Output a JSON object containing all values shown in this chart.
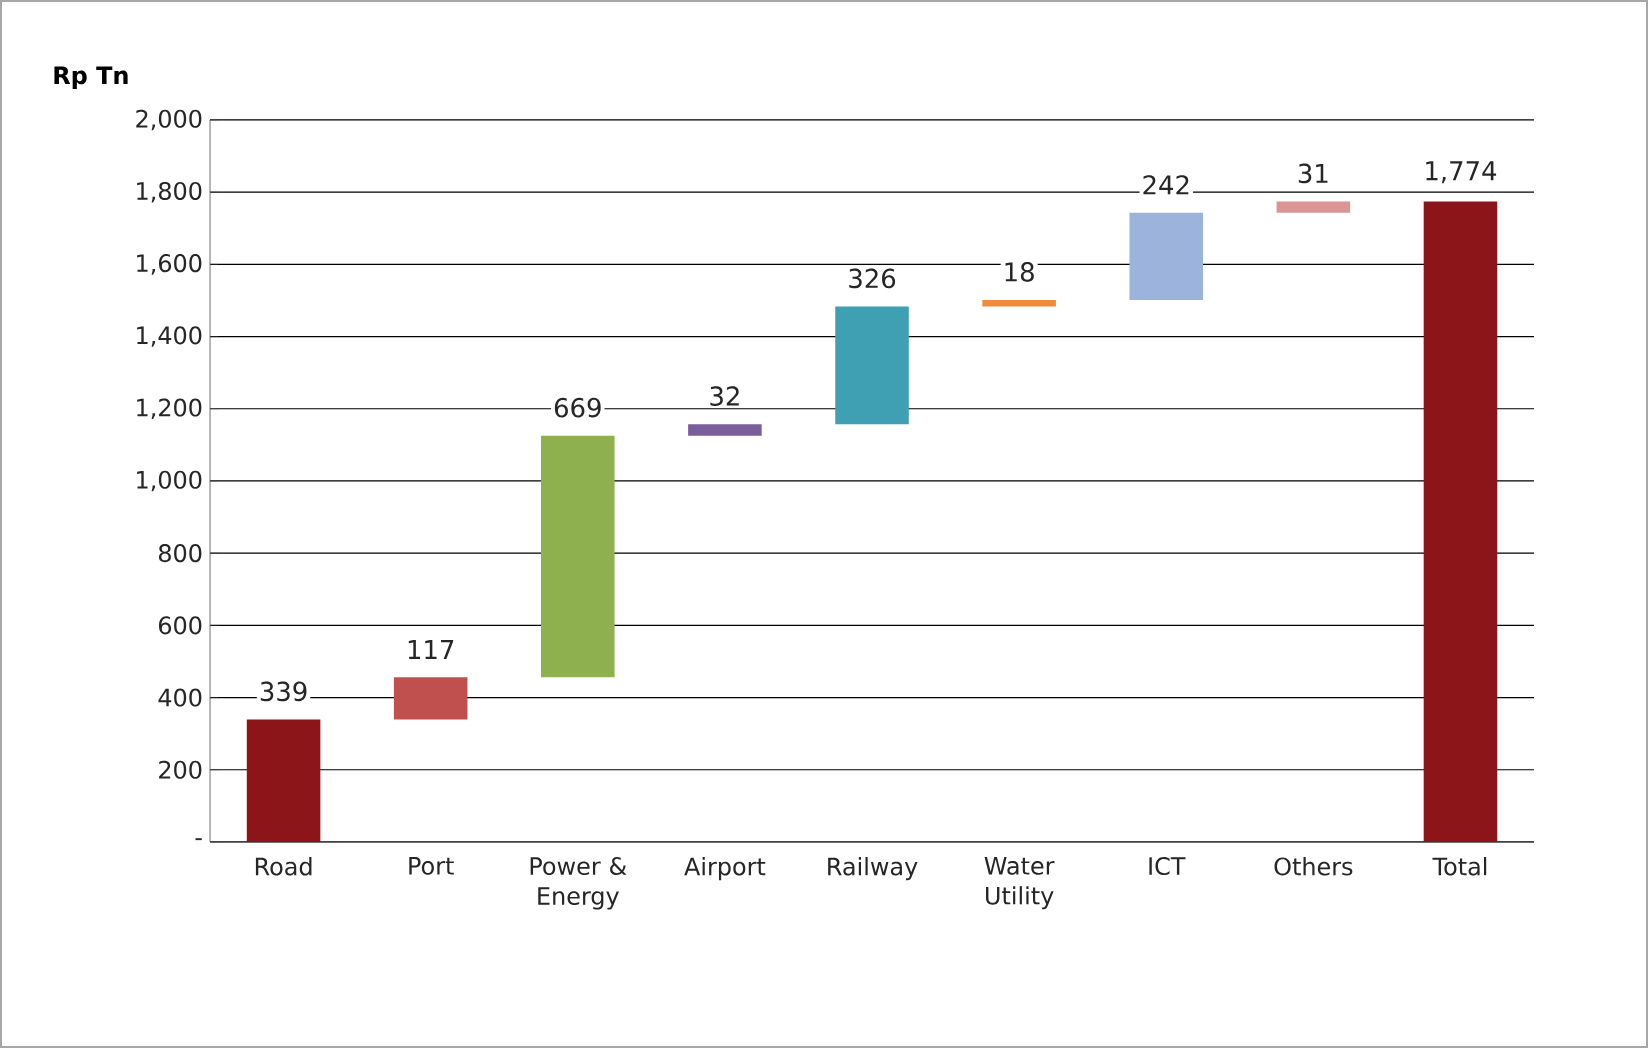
{
  "chart_data": {
    "type": "bar",
    "ylabel": "Rp Tn",
    "categories": [
      "Road",
      "Port",
      "Power & Energy",
      "Airport",
      "Railway",
      "Water Utility",
      "ICT",
      "Others",
      "Total"
    ],
    "values": [
      339,
      117,
      669,
      32,
      326,
      18,
      242,
      31,
      1774
    ],
    "base": [
      0,
      339,
      456,
      1125,
      1157,
      1483,
      1501,
      1743,
      0
    ],
    "colors": [
      "#8b1518",
      "#c0504d",
      "#8fb04e",
      "#7a5d9b",
      "#3fa0b4",
      "#f08a3c",
      "#9cb3db",
      "#d99694",
      "#8b1518"
    ],
    "value_labels": [
      "339",
      "117",
      "669",
      "32",
      "326",
      "18",
      "242",
      "31",
      "1,774"
    ],
    "ylim": [
      0,
      2000
    ],
    "yticks": [
      {
        "value": 0,
        "label": "-"
      },
      200,
      400,
      600,
      800,
      {
        "value": 1000,
        "label": "1,000"
      },
      {
        "value": 1200,
        "label": "1,200"
      },
      {
        "value": 1400,
        "label": "1,400"
      },
      {
        "value": 1600,
        "label": "1,600"
      },
      {
        "value": 1800,
        "label": "1,800"
      },
      {
        "value": 2000,
        "label": "2,000"
      }
    ],
    "grid": "y"
  }
}
